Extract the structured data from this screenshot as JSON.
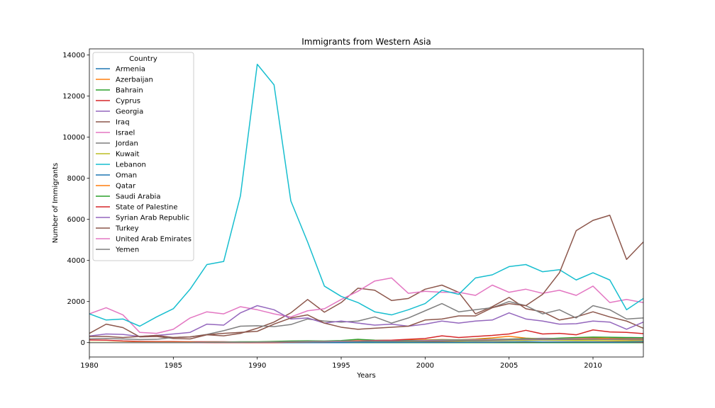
{
  "chart_data": {
    "type": "line",
    "title": "Immigrants from Western Asia",
    "xlabel": "Years",
    "ylabel": "Number of Immigrants",
    "xlim": [
      1980,
      2013
    ],
    "ylim": [
      -700,
      14300
    ],
    "xticks": [
      1980,
      1985,
      1990,
      1995,
      2000,
      2005,
      2010
    ],
    "yticks": [
      0,
      2000,
      4000,
      6000,
      8000,
      10000,
      12000,
      14000
    ],
    "grid": false,
    "legend": {
      "title": "Country",
      "placement": "top-left"
    },
    "x": [
      1980,
      1981,
      1982,
      1983,
      1984,
      1985,
      1986,
      1987,
      1988,
      1989,
      1990,
      1991,
      1992,
      1993,
      1994,
      1995,
      1996,
      1997,
      1998,
      1999,
      2000,
      2001,
      2002,
      2003,
      2004,
      2005,
      2006,
      2007,
      2008,
      2009,
      2010,
      2011,
      2012,
      2013
    ],
    "series": [
      {
        "name": "Armenia",
        "color": "#1f77b4",
        "values": [
          0,
          0,
          0,
          0,
          0,
          0,
          0,
          0,
          0,
          0,
          0,
          10,
          20,
          30,
          40,
          50,
          60,
          70,
          80,
          90,
          100,
          110,
          120,
          130,
          140,
          150,
          160,
          170,
          180,
          190,
          200,
          210,
          220,
          230
        ]
      },
      {
        "name": "Azerbaijan",
        "color": "#ff7f0e",
        "values": [
          0,
          0,
          0,
          0,
          0,
          0,
          0,
          0,
          0,
          0,
          0,
          5,
          10,
          15,
          20,
          30,
          40,
          45,
          50,
          55,
          60,
          70,
          80,
          90,
          100,
          110,
          120,
          130,
          140,
          150,
          160,
          150,
          140,
          130
        ]
      },
      {
        "name": "Bahrain",
        "color": "#2ca02c",
        "values": [
          0,
          0,
          0,
          0,
          0,
          0,
          0,
          0,
          0,
          0,
          0,
          0,
          0,
          0,
          0,
          0,
          0,
          0,
          0,
          0,
          0,
          0,
          0,
          0,
          0,
          0,
          0,
          0,
          0,
          0,
          0,
          0,
          0,
          0
        ]
      },
      {
        "name": "Cyprus",
        "color": "#d62728",
        "values": [
          130,
          120,
          80,
          60,
          50,
          50,
          40,
          40,
          40,
          30,
          20,
          30,
          30,
          30,
          30,
          30,
          20,
          20,
          20,
          30,
          30,
          30,
          20,
          20,
          20,
          30,
          30,
          30,
          30,
          30,
          30,
          30,
          30,
          20
        ]
      },
      {
        "name": "Georgia",
        "color": "#9467bd",
        "values": [
          0,
          0,
          0,
          0,
          0,
          0,
          0,
          0,
          0,
          0,
          0,
          0,
          0,
          20,
          30,
          40,
          60,
          70,
          80,
          90,
          100,
          110,
          130,
          140,
          150,
          170,
          190,
          210,
          200,
          190,
          180,
          170,
          190,
          210
        ]
      },
      {
        "name": "Iraq",
        "color": "#8c564b",
        "values": [
          450,
          900,
          730,
          280,
          300,
          200,
          180,
          380,
          330,
          450,
          700,
          1000,
          1450,
          2100,
          1480,
          1950,
          2650,
          2550,
          2050,
          2150,
          2600,
          2800,
          2450,
          1400,
          1750,
          2200,
          1650,
          1500,
          1100,
          1250,
          1500,
          1250,
          1050,
          700
        ]
      },
      {
        "name": "Israel",
        "color": "#e377c2",
        "values": [
          1400,
          1700,
          1350,
          500,
          450,
          650,
          1200,
          1500,
          1400,
          1750,
          1600,
          1400,
          1250,
          1550,
          1650,
          2100,
          2500,
          3000,
          3150,
          2400,
          2500,
          2450,
          2450,
          2300,
          2800,
          2450,
          2600,
          2400,
          2550,
          2300,
          2750,
          1950,
          2100,
          1950
        ]
      },
      {
        "name": "Jordan",
        "color": "#7f7f7f",
        "values": [
          180,
          200,
          180,
          150,
          160,
          250,
          280,
          400,
          580,
          800,
          820,
          780,
          880,
          1150,
          1050,
          1000,
          1050,
          1250,
          950,
          1200,
          1550,
          1900,
          1500,
          1600,
          1700,
          2000,
          1800,
          1400,
          1600,
          1200,
          1800,
          1600,
          1150,
          1200
        ]
      },
      {
        "name": "Kuwait",
        "color": "#bcbd22",
        "values": [
          10,
          10,
          10,
          10,
          10,
          10,
          10,
          20,
          20,
          30,
          20,
          30,
          40,
          40,
          30,
          40,
          60,
          50,
          60,
          60,
          70,
          80,
          70,
          80,
          90,
          100,
          110,
          120,
          110,
          100,
          100,
          90,
          80,
          90
        ]
      },
      {
        "name": "Lebanon",
        "color": "#17becf",
        "values": [
          1400,
          1100,
          1150,
          800,
          1250,
          1650,
          2600,
          3800,
          3950,
          7150,
          13550,
          12550,
          6900,
          4900,
          2750,
          2250,
          1950,
          1500,
          1350,
          1600,
          1900,
          2550,
          2350,
          3150,
          3300,
          3700,
          3800,
          3450,
          3550,
          3050,
          3400,
          3050,
          1600,
          2150
        ]
      },
      {
        "name": "Oman",
        "color": "#1f77b4",
        "values": [
          0,
          0,
          0,
          0,
          0,
          0,
          0,
          0,
          0,
          0,
          0,
          0,
          0,
          0,
          0,
          0,
          10,
          10,
          10,
          10,
          10,
          10,
          10,
          20,
          20,
          30,
          40,
          30,
          30,
          30,
          30,
          20,
          30,
          40
        ]
      },
      {
        "name": "Qatar",
        "color": "#ff7f0e",
        "values": [
          0,
          0,
          0,
          0,
          0,
          0,
          0,
          0,
          0,
          0,
          0,
          10,
          20,
          40,
          60,
          80,
          110,
          90,
          100,
          120,
          130,
          150,
          130,
          170,
          230,
          310,
          220,
          180,
          200,
          220,
          240,
          200,
          180,
          160
        ]
      },
      {
        "name": "Saudi Arabia",
        "color": "#2ca02c",
        "values": [
          0,
          0,
          0,
          0,
          0,
          0,
          0,
          20,
          30,
          40,
          40,
          60,
          80,
          90,
          80,
          100,
          160,
          120,
          110,
          100,
          110,
          140,
          140,
          150,
          160,
          170,
          200,
          180,
          220,
          250,
          270,
          260,
          250,
          240
        ]
      },
      {
        "name": "State of Palestine",
        "color": "#d62728",
        "values": [
          0,
          0,
          0,
          0,
          0,
          0,
          0,
          0,
          0,
          0,
          0,
          0,
          20,
          30,
          40,
          60,
          80,
          100,
          120,
          160,
          200,
          330,
          250,
          300,
          350,
          420,
          600,
          420,
          450,
          380,
          620,
          520,
          500,
          440
        ]
      },
      {
        "name": "Syrian Arab Republic",
        "color": "#9467bd",
        "values": [
          320,
          420,
          400,
          300,
          350,
          420,
          500,
          900,
          850,
          1450,
          1800,
          1600,
          1150,
          1200,
          950,
          1050,
          950,
          850,
          900,
          800,
          900,
          1050,
          950,
          1050,
          1100,
          1450,
          1150,
          1050,
          900,
          920,
          1050,
          1000,
          650,
          1000
        ]
      },
      {
        "name": "Turkey",
        "color": "#8c564b",
        "values": [
          300,
          300,
          250,
          300,
          350,
          250,
          280,
          380,
          450,
          500,
          550,
          900,
          1200,
          1350,
          950,
          750,
          650,
          700,
          750,
          800,
          1100,
          1150,
          1300,
          1300,
          1700,
          1900,
          1800,
          2350,
          3400,
          5450,
          5950,
          6200,
          4050,
          4900
        ]
      },
      {
        "name": "United Arab Emirates",
        "color": "#e377c2",
        "values": [
          0,
          0,
          0,
          0,
          0,
          0,
          0,
          10,
          20,
          20,
          20,
          30,
          40,
          50,
          60,
          70,
          80,
          80,
          80,
          90,
          100,
          120,
          120,
          130,
          140,
          150,
          170,
          160,
          170,
          190,
          180,
          160,
          150,
          130
        ]
      },
      {
        "name": "Yemen",
        "color": "#7f7f7f",
        "values": [
          0,
          0,
          0,
          0,
          0,
          0,
          0,
          10,
          10,
          10,
          20,
          20,
          30,
          30,
          40,
          50,
          60,
          70,
          70,
          80,
          80,
          90,
          100,
          100,
          110,
          130,
          150,
          140,
          150,
          160,
          170,
          160,
          150,
          140
        ]
      }
    ]
  }
}
